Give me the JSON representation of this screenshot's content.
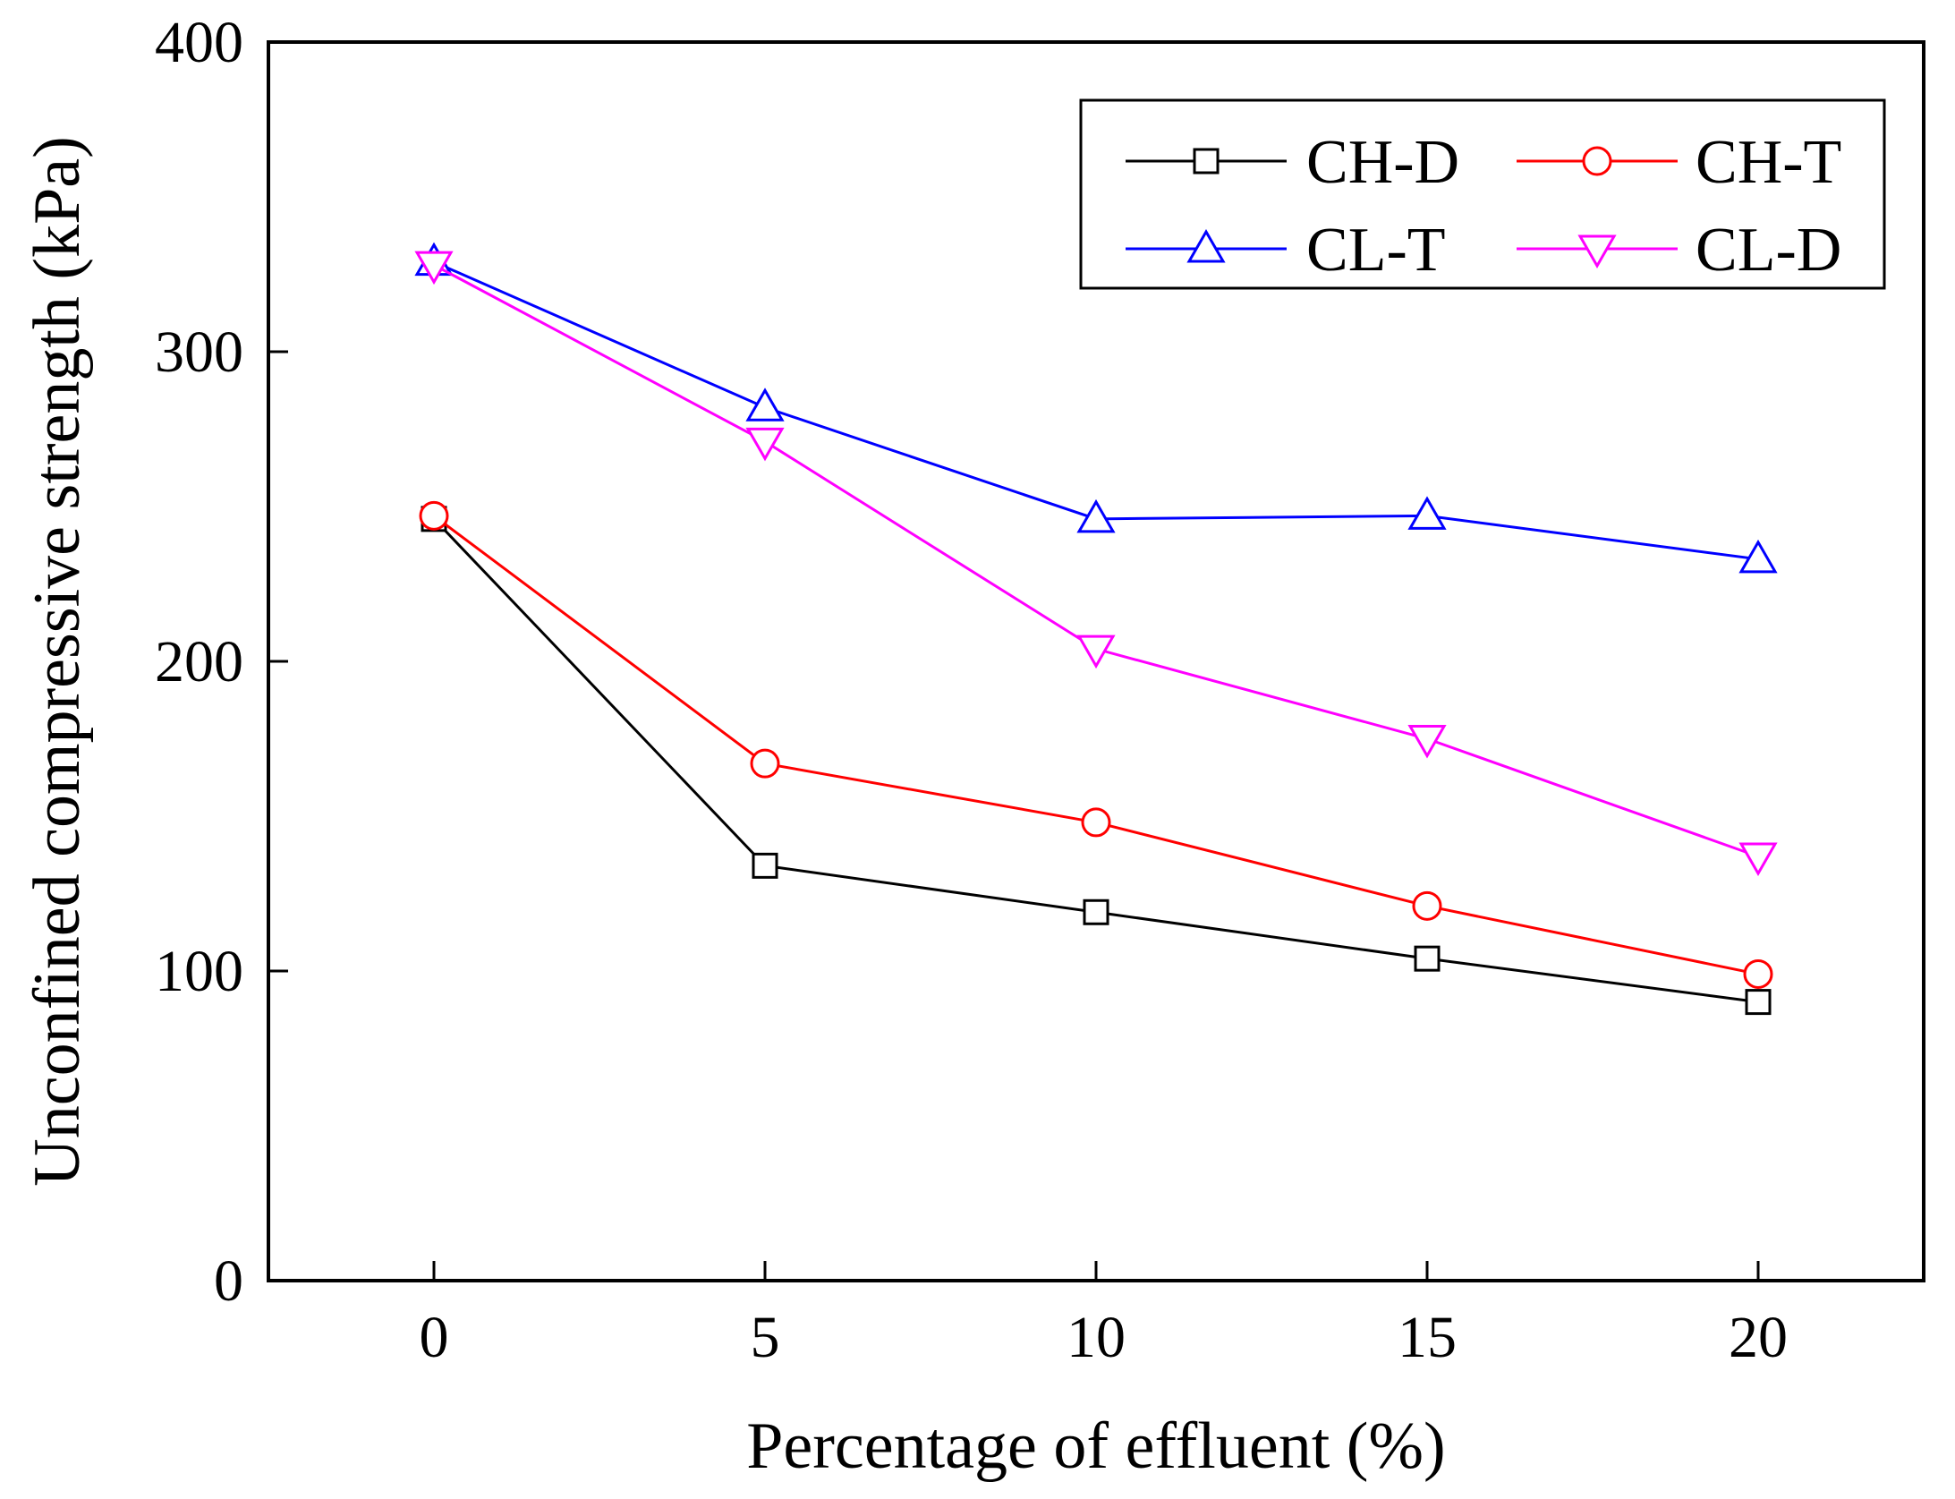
{
  "chart_data": {
    "type": "line",
    "xlabel": "Percentage of effluent (%)",
    "ylabel": "Unconfined compressive strength (kPa)",
    "xlim": [
      -2.5,
      22.5
    ],
    "ylim": [
      0,
      400
    ],
    "x_ticks": [
      0,
      5,
      10,
      15,
      20
    ],
    "y_ticks": [
      0,
      100,
      200,
      300,
      400
    ],
    "x": [
      0,
      5,
      10,
      15,
      20
    ],
    "grid": false,
    "legend_position": "top-right",
    "series": [
      {
        "name": "CH-D",
        "values": [
          246,
          134,
          119,
          104,
          90
        ],
        "color": "#000000",
        "marker": "square"
      },
      {
        "name": "CH-T",
        "values": [
          247,
          167,
          148,
          121,
          99
        ],
        "color": "#ff0000",
        "marker": "circle"
      },
      {
        "name": "CL-T",
        "values": [
          329,
          282,
          246,
          247,
          233
        ],
        "color": "#0000ff",
        "marker": "triangle-up"
      },
      {
        "name": "CL-D",
        "values": [
          328,
          271,
          204,
          175,
          137
        ],
        "color": "#ff00ff",
        "marker": "triangle-down"
      }
    ]
  }
}
